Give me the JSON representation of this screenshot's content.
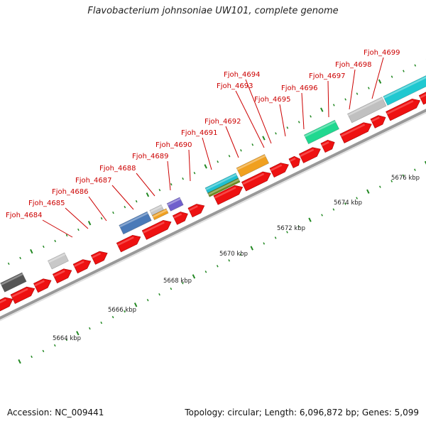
{
  "title": "Flavobacterium johnsoniae UW101, complete genome",
  "footer": {
    "accession": "Accession: NC_009441",
    "summary": "Topology: circular; Length: 6,096,872 bp; Genes: 5,099"
  },
  "colors": {
    "gene_red": "#ee1111",
    "backbone": "#aaaaaa",
    "label_red": "#cc0000",
    "tick_green": "#228822"
  },
  "ruler_labels": [
    "5664 kbp",
    "5666 kbp",
    "5668 kbp",
    "5670 kbp",
    "5672 kbp",
    "5674 kbp",
    "5676 kbp"
  ],
  "gene_labels": [
    "Fjoh_4684",
    "Fjoh_4685",
    "Fjoh_4686",
    "Fjoh_4687",
    "Fjoh_4688",
    "Fjoh_4689",
    "Fjoh_4690",
    "Fjoh_4691",
    "Fjoh_4692",
    "Fjoh_4693",
    "Fjoh_4694",
    "Fjoh_4695",
    "Fjoh_4696",
    "Fjoh_4697",
    "Fjoh_4698",
    "Fjoh_4699"
  ],
  "feature_colors": [
    "#555555",
    "#c8c8c8",
    "#4a7ab8",
    "#c8c8c8",
    "#f0a020",
    "#7060cc",
    "#20c0d0",
    "#6a8a20",
    "#f0a020",
    "#20d890",
    "#c0c0c0",
    "#20c8d0"
  ]
}
